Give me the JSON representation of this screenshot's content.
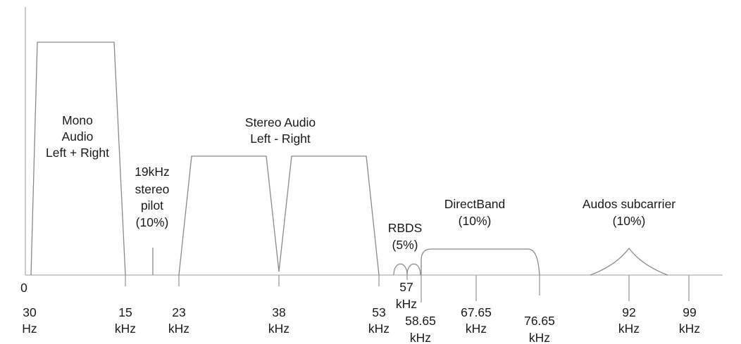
{
  "diagram": {
    "origin_label": "0",
    "bands": [
      {
        "id": "mono",
        "lines": [
          "Mono",
          "Audio",
          "Left + Right"
        ]
      },
      {
        "id": "pilot",
        "lines": [
          "19kHz",
          "stereo",
          "pilot",
          "(10%)"
        ]
      },
      {
        "id": "stereo",
        "lines": [
          "Stereo Audio",
          "Left - Right"
        ]
      },
      {
        "id": "rbds",
        "lines": [
          "RBDS",
          "(5%)"
        ]
      },
      {
        "id": "directband",
        "lines": [
          "DirectBand",
          "(10%)"
        ]
      },
      {
        "id": "audos",
        "lines": [
          "Audos subcarrier",
          "(10%)"
        ]
      }
    ],
    "axis_labels": [
      {
        "id": "30hz",
        "value": "30",
        "unit": "Hz"
      },
      {
        "id": "15khz",
        "value": "15",
        "unit": "kHz"
      },
      {
        "id": "23khz",
        "value": "23",
        "unit": "kHz"
      },
      {
        "id": "38khz",
        "value": "38",
        "unit": "kHz"
      },
      {
        "id": "53khz",
        "value": "53",
        "unit": "kHz"
      },
      {
        "id": "57khz",
        "value": "57",
        "unit": "kHz"
      },
      {
        "id": "58-65khz",
        "value": "58.65",
        "unit": "kHz"
      },
      {
        "id": "67-65khz",
        "value": "67.65",
        "unit": "kHz"
      },
      {
        "id": "76-65khz",
        "value": "76.65",
        "unit": "kHz"
      },
      {
        "id": "92khz",
        "value": "92",
        "unit": "kHz"
      },
      {
        "id": "99khz",
        "value": "99",
        "unit": "kHz"
      }
    ]
  }
}
